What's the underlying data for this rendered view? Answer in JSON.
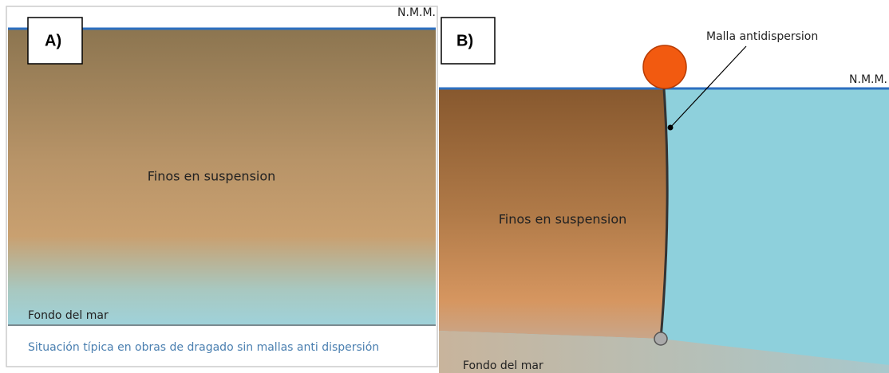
{
  "panel_a": {
    "label": "A)",
    "water_level": "N.M.M.",
    "suspension": "Finos en suspension",
    "seabed": "Fondo del mar",
    "caption": "Situación típica en obras de dragado sin mallas anti dispersión"
  },
  "panel_b": {
    "label": "B)",
    "net": "Malla antidispersion",
    "water_level": "N.M.M.",
    "suspension": "Finos en suspension",
    "seabed": "Fondo del mar"
  }
}
